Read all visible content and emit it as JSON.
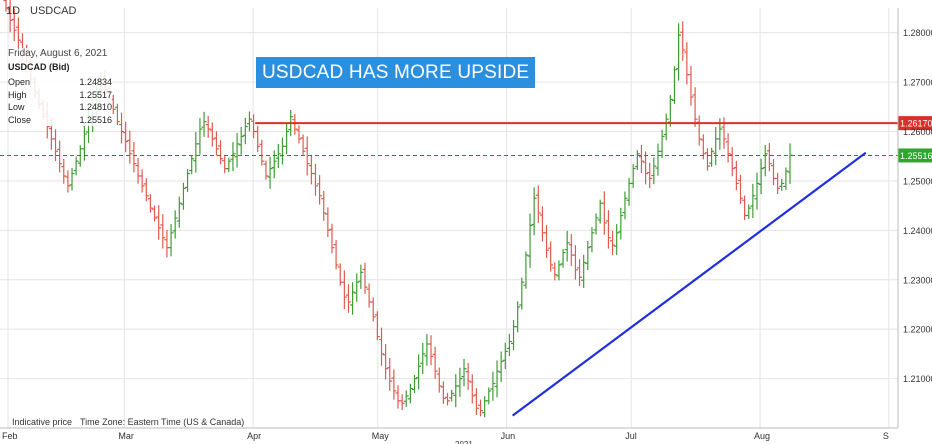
{
  "header": {
    "timeframe": "1D",
    "symbol": "USDCAD"
  },
  "ohlc_panel": {
    "date": "Friday, August 6, 2021",
    "instrument": "USDCAD (Bid)",
    "rows": [
      {
        "label": "Open",
        "value": "1.24834"
      },
      {
        "label": "High",
        "value": "1.25517"
      },
      {
        "label": "Low",
        "value": "1.24810"
      },
      {
        "label": "Close",
        "value": "1.25516"
      }
    ]
  },
  "banner": {
    "text": "USDCAD HAS MORE UPSIDE"
  },
  "footer": {
    "indicative": "Indicative price",
    "timezone": "Time Zone: Eastern Time (US & Canada)"
  },
  "colors": {
    "up": "#3f9c35",
    "down": "#e05a50",
    "resistance": "#d9302a",
    "trendline": "#1f2fe0",
    "grid": "#e4e4e4",
    "price_tag": "#2fa52f",
    "resistance_tag": "#d9302a"
  },
  "chart_data": {
    "type": "ohlc",
    "ylim": [
      1.2,
      1.29
    ],
    "yticks": [
      "1.21000",
      "1.22000",
      "1.23000",
      "1.24000",
      "1.25000",
      "1.26000",
      "1.27000",
      "1.28000"
    ],
    "xlabels": [
      "Feb",
      "Mar",
      "Apr",
      "May",
      "Jun",
      "Jul",
      "Aug",
      "S"
    ],
    "x_year_label": "2021",
    "current_price": {
      "value": 1.25516,
      "label": "1.25516"
    },
    "resistance": {
      "value": 1.2617,
      "label": "1.26170",
      "from": "2021-04-01"
    },
    "trendline": {
      "from": [
        "2021-06-01",
        1.2025
      ],
      "to": [
        "2021-08-25",
        1.2557
      ]
    },
    "closes": [
      1.285,
      1.2825,
      1.2805,
      1.2785,
      1.276,
      1.2735,
      1.2705,
      1.268,
      1.2655,
      1.263,
      1.261,
      1.2585,
      1.256,
      1.2535,
      1.251,
      1.249,
      1.2515,
      1.254,
      1.2565,
      1.2595,
      1.2625,
      1.265,
      1.268,
      1.2705,
      1.2685,
      1.2665,
      1.2645,
      1.262,
      1.26,
      1.258,
      1.2555,
      1.2535,
      1.251,
      1.249,
      1.247,
      1.2445,
      1.2425,
      1.2405,
      1.2385,
      1.2365,
      1.2395,
      1.2425,
      1.2455,
      1.2485,
      1.2515,
      1.2545,
      1.2575,
      1.2605,
      1.262,
      1.2605,
      1.2585,
      1.2565,
      1.2545,
      1.2525,
      1.254,
      1.2555,
      1.2575,
      1.259,
      1.261,
      1.2625,
      1.26,
      1.257,
      1.254,
      1.251,
      1.2525,
      1.254,
      1.2555,
      1.257,
      1.26,
      1.263,
      1.2605,
      1.2585,
      1.256,
      1.2535,
      1.2515,
      1.249,
      1.247,
      1.2435,
      1.24,
      1.2365,
      1.233,
      1.2295,
      1.2265,
      1.2255,
      1.2275,
      1.2295,
      1.2315,
      1.2285,
      1.2255,
      1.2225,
      1.2185,
      1.215,
      1.212,
      1.2095,
      1.2075,
      1.2055,
      1.205,
      1.2065,
      1.208,
      1.21,
      1.2125,
      1.215,
      1.217,
      1.2145,
      1.2115,
      1.2085,
      1.206,
      1.2055,
      1.207,
      1.2085,
      1.21,
      1.212,
      1.2095,
      1.2065,
      1.204,
      1.2035,
      1.2055,
      1.2075,
      1.209,
      1.2115,
      1.2135,
      1.2155,
      1.2175,
      1.2205,
      1.2245,
      1.2295,
      1.235,
      1.241,
      1.2465,
      1.2435,
      1.2395,
      1.236,
      1.233,
      1.231,
      1.233,
      1.2355,
      1.2375,
      1.235,
      1.232,
      1.2305,
      1.2335,
      1.2365,
      1.2395,
      1.2425,
      1.2455,
      1.2415,
      1.2385,
      1.237,
      1.2395,
      1.243,
      1.2465,
      1.2495,
      1.2525,
      1.2555,
      1.254,
      1.2515,
      1.2505,
      1.253,
      1.256,
      1.259,
      1.2625,
      1.2665,
      1.2725,
      1.2795,
      1.2765,
      1.2715,
      1.267,
      1.2625,
      1.2585,
      1.2555,
      1.253,
      1.256,
      1.2585,
      1.2605,
      1.2585,
      1.2555,
      1.2525,
      1.2495,
      1.2465,
      1.243,
      1.2445,
      1.247,
      1.2495,
      1.2525,
      1.2555,
      1.2535,
      1.2505,
      1.2485,
      1.2495,
      1.252,
      1.2552
    ]
  }
}
